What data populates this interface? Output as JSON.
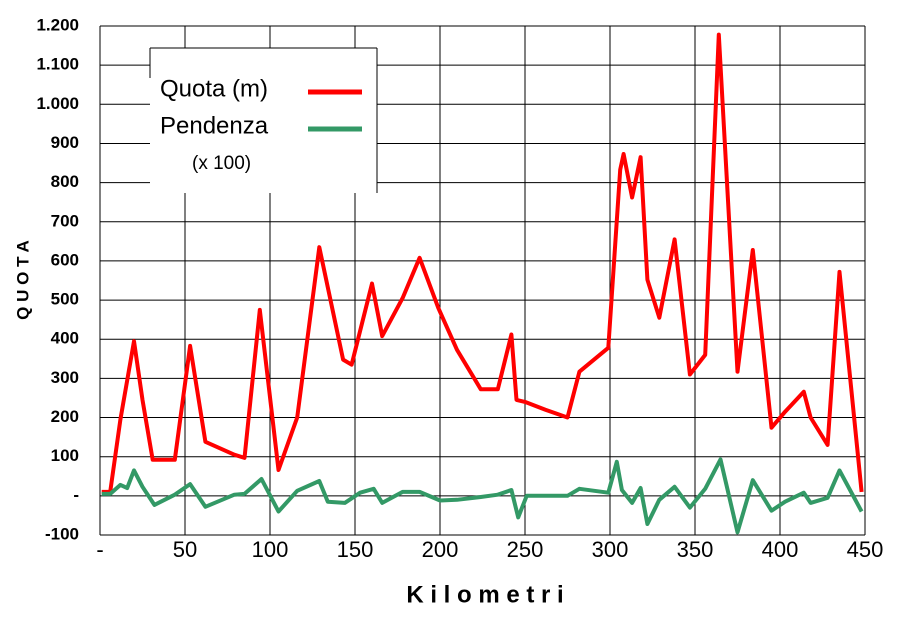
{
  "chart_data": {
    "type": "line",
    "y_label": "Q U O T A",
    "x_label": "K i l o m e t r i",
    "legend_note": "(x 100)",
    "legend_position": "upper-left",
    "grid": true,
    "xlim": [
      0,
      450
    ],
    "xticks": [
      {
        "value": 0,
        "label": "-"
      },
      50,
      100,
      150,
      200,
      250,
      300,
      350,
      400,
      450
    ],
    "ylim": [
      -100,
      1200
    ],
    "yticks": [
      -100,
      {
        "value": 0,
        "label": "-"
      },
      100,
      200,
      300,
      400,
      500,
      600,
      700,
      800,
      900,
      {
        "value": 1000,
        "label": "1.000"
      },
      {
        "value": 1100,
        "label": "1.100"
      },
      {
        "value": 1200,
        "label": "1.200"
      }
    ],
    "series": [
      {
        "name": "Quota (m)",
        "color": "#ff0000",
        "x": [
          1,
          6,
          12,
          20,
          25,
          31,
          44,
          53,
          62,
          79,
          85,
          94,
          105,
          116,
          129,
          143,
          148,
          160,
          166,
          178,
          188,
          199,
          210,
          224,
          234,
          242,
          245,
          250,
          262,
          275,
          282,
          299,
          306,
          308,
          313,
          318,
          322,
          329,
          338,
          347,
          356,
          364,
          375,
          384,
          395,
          403,
          414,
          418,
          428,
          435,
          448
        ],
        "values": [
          10,
          10,
          195,
          395,
          245,
          92,
          92,
          383,
          138,
          105,
          97,
          475,
          66,
          200,
          635,
          348,
          335,
          542,
          408,
          505,
          608,
          480,
          373,
          272,
          272,
          412,
          245,
          240,
          220,
          200,
          317,
          378,
          833,
          873,
          762,
          865,
          552,
          455,
          655,
          310,
          360,
          1178,
          317,
          628,
          174,
          215,
          266,
          200,
          130,
          572,
          10
        ]
      },
      {
        "name": "Pendenza",
        "color": "#339966",
        "x": [
          1,
          6,
          12,
          16,
          20,
          25,
          32,
          44,
          53,
          62,
          79,
          85,
          95,
          105,
          116,
          129,
          134,
          144,
          153,
          161,
          166,
          178,
          188,
          200,
          210,
          224,
          234,
          242,
          246,
          251,
          275,
          282,
          299,
          304,
          307,
          313,
          318,
          322,
          329,
          338,
          347,
          356,
          365,
          375,
          384,
          395,
          403,
          414,
          418,
          428,
          435,
          448
        ],
        "values": [
          5,
          5,
          28,
          20,
          65,
          23,
          -23,
          3,
          30,
          -28,
          3,
          5,
          43,
          -40,
          13,
          38,
          -15,
          -18,
          8,
          18,
          -18,
          10,
          10,
          -12,
          -10,
          -3,
          3,
          15,
          -55,
          0,
          0,
          18,
          8,
          87,
          15,
          -18,
          20,
          -72,
          -10,
          23,
          -30,
          18,
          93,
          -93,
          40,
          -38,
          -15,
          8,
          -18,
          -5,
          65,
          -40
        ]
      }
    ]
  }
}
